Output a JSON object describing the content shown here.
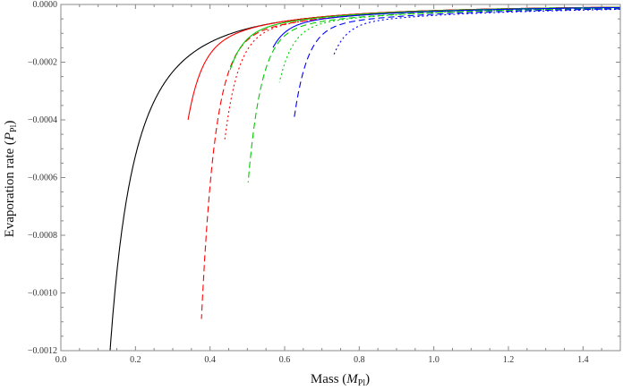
{
  "chart_data": {
    "type": "line",
    "title": "",
    "xlabel": "Mass (M_Pl)",
    "xlabel_main": "Mass (",
    "xlabel_var": "M",
    "xlabel_sub": "Pl",
    "xlabel_close": ")",
    "ylabel": "Evaporation rate (P_Pl)",
    "ylabel_main": "Evaporation  rate (",
    "ylabel_var": "P",
    "ylabel_sub": "Pl",
    "ylabel_close": ")",
    "xlim": [
      0.0,
      1.5
    ],
    "ylim": [
      -0.0012,
      0.0
    ],
    "x_ticks": [
      "0.0",
      "0.2",
      "0.4",
      "0.6",
      "0.8",
      "1.0",
      "1.2",
      "1.4"
    ],
    "x_tick_values": [
      0.0,
      0.2,
      0.4,
      0.6,
      0.8,
      1.0,
      1.2,
      1.4
    ],
    "y_ticks": [
      "0.0000",
      "-0.0002",
      "-0.0004",
      "-0.0006",
      "-0.0008",
      "-0.0010",
      "-0.0012"
    ],
    "y_tick_values": [
      0.0,
      -0.0002,
      -0.0004,
      -0.0006,
      -0.0008,
      -0.001,
      -0.0012
    ],
    "grid": false,
    "legend": "none",
    "series": [
      {
        "name": "black solid",
        "color": "#000000",
        "dash": "solid",
        "end_mass": 0.132,
        "end_rate": -0.0012,
        "k": 2.1e-05
      },
      {
        "name": "red solid",
        "color": "#ff0000",
        "dash": "solid",
        "end_mass": 0.341,
        "end_rate": -0.0004,
        "k": 2.1e-05
      },
      {
        "name": "red dashed",
        "color": "#ff0000",
        "dash": "dashed",
        "end_mass": 0.377,
        "end_rate": -0.00109,
        "k": 2.4e-05
      },
      {
        "name": "red dotted",
        "color": "#ff0000",
        "dash": "dotted",
        "end_mass": 0.439,
        "end_rate": -0.000474,
        "k": 2.4e-05
      },
      {
        "name": "green solid",
        "color": "#00cc00",
        "dash": "solid",
        "end_mass": 0.454,
        "end_rate": -0.000226,
        "k": 2.2e-05
      },
      {
        "name": "green dashed",
        "color": "#00cc00",
        "dash": "dashed",
        "end_mass": 0.502,
        "end_rate": -0.000617,
        "k": 2.8e-05
      },
      {
        "name": "green dotted",
        "color": "#00cc00",
        "dash": "dotted",
        "end_mass": 0.586,
        "end_rate": -0.00027,
        "k": 2.9e-05
      },
      {
        "name": "blue solid",
        "color": "#0000ff",
        "dash": "solid",
        "end_mass": 0.569,
        "end_rate": -0.000149,
        "k": 2.4e-05
      },
      {
        "name": "blue dashed",
        "color": "#0000ff",
        "dash": "dashed",
        "end_mass": 0.626,
        "end_rate": -0.00039,
        "k": 3.4e-05
      },
      {
        "name": "blue dotted",
        "color": "#0000ff",
        "dash": "dotted",
        "end_mass": 0.732,
        "end_rate": -0.000174,
        "k": 3.8e-05
      }
    ]
  }
}
